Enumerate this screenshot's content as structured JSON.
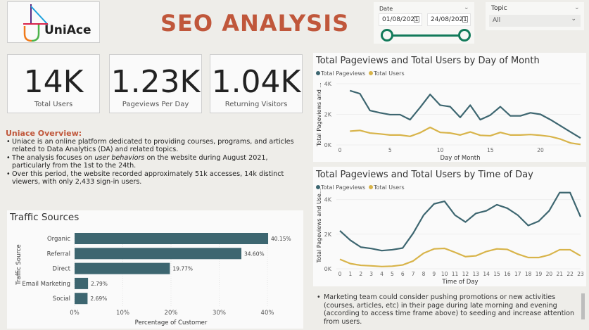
{
  "header": {
    "logo_text": "UniAce",
    "title": "SEO ANALYSIS"
  },
  "filters": {
    "date_label": "Date",
    "start_date": "01/08/2021",
    "end_date": "24/08/2021",
    "topic_label": "Topic",
    "topic_value": "All"
  },
  "kpis": [
    {
      "value": "14K",
      "label": "Total Users"
    },
    {
      "value": "1.23K",
      "label": "Pageviews Per Day"
    },
    {
      "value": "1.04K",
      "label": "Returning Visitors"
    }
  ],
  "overview": {
    "heading": "Uniace Overview:",
    "bullets": [
      "Uniace is an online platform dedicated to providing courses, programs, and articles related to Data Analytics (DA) and related topics.",
      "__b2__",
      "Over this period, the website recorded approximately 51k accesses, 14k distinct viewers, with only 2,433 sign-in users."
    ],
    "b2_pre": "The analysis focuses on ",
    "b2_em": "user behaviors",
    "b2_post": " on the website during August 2021, particularly from the 1st to the 24th."
  },
  "notes": "Marketing team could consider pushing promotions or new activities (courses, articles, etc) in their page during late morning and evening (according to access time frame above) to seeding and increase attention from users.",
  "colors": {
    "pageviews": "#3d6670",
    "users": "#d8b44a",
    "bar": "#3d6670",
    "title": "#c0573b",
    "slider": "#127a5a"
  },
  "chart_data": [
    {
      "type": "bar",
      "orientation": "horizontal",
      "title": "Traffic Sources",
      "xlabel": "Percentage of Customer",
      "ylabel": "Traffic Source",
      "categories": [
        "Organic",
        "Referral",
        "Direct",
        "Email Marketing",
        "Social"
      ],
      "values": [
        40.15,
        34.6,
        19.77,
        2.79,
        2.69
      ],
      "data_labels": [
        "40.15%",
        "34.60%",
        "19.77%",
        "2.79%",
        "2.69%"
      ],
      "xlim": [
        0,
        40
      ],
      "xticks": [
        "0%",
        "10%",
        "20%",
        "30%",
        "40%"
      ],
      "grid": true
    },
    {
      "type": "line",
      "title": "Total Pageviews and Total Users by Day of Month",
      "xlabel": "Day of Month",
      "ylabel": "Total Pageviews and ...",
      "legend": "top-left",
      "x": [
        1,
        2,
        3,
        4,
        5,
        6,
        7,
        8,
        9,
        10,
        11,
        12,
        13,
        14,
        15,
        16,
        17,
        18,
        19,
        20,
        21,
        22,
        23,
        24
      ],
      "xticks": [
        0,
        5,
        10,
        15,
        20
      ],
      "xlim": [
        0,
        24
      ],
      "ylim": [
        0,
        4000
      ],
      "yticks": [
        "0K",
        "2K",
        "4K"
      ],
      "series": [
        {
          "name": "Total Pageviews",
          "values": [
            3550,
            3350,
            2250,
            2100,
            1980,
            1980,
            1650,
            2450,
            3300,
            2600,
            2500,
            1800,
            2600,
            1650,
            1950,
            2500,
            1900,
            1900,
            2100,
            2000,
            1650,
            1250,
            850,
            450
          ]
        },
        {
          "name": "Total Users",
          "values": [
            900,
            950,
            780,
            720,
            650,
            650,
            560,
            800,
            1150,
            820,
            780,
            650,
            850,
            630,
            600,
            820,
            650,
            650,
            680,
            630,
            550,
            380,
            130,
            30
          ]
        }
      ]
    },
    {
      "type": "line",
      "title": "Total Pageviews and Total Users by Time of Day",
      "xlabel": "Time of Day",
      "ylabel": "Total Pageviews and Use...",
      "legend": "top-left",
      "x": [
        0,
        1,
        2,
        3,
        4,
        5,
        6,
        7,
        8,
        9,
        10,
        11,
        12,
        13,
        14,
        15,
        16,
        17,
        18,
        19,
        20,
        21,
        22,
        23
      ],
      "xticks": [
        0,
        1,
        2,
        3,
        4,
        5,
        6,
        7,
        8,
        9,
        10,
        11,
        12,
        13,
        14,
        15,
        16,
        17,
        18,
        19,
        20,
        21,
        22,
        23
      ],
      "xlim": [
        0,
        23
      ],
      "ylim": [
        0,
        5000
      ],
      "yticks": [
        "0K",
        "2K",
        "4K"
      ],
      "series": [
        {
          "name": "Total Pageviews",
          "values": [
            2200,
            1650,
            1250,
            1170,
            1050,
            1100,
            1200,
            2050,
            3100,
            3750,
            3900,
            3100,
            2700,
            3200,
            3350,
            3700,
            3500,
            3100,
            2500,
            2750,
            3350,
            4400,
            4400,
            3000
          ]
        },
        {
          "name": "Total Users",
          "values": [
            550,
            300,
            200,
            170,
            130,
            150,
            220,
            450,
            900,
            1150,
            1180,
            950,
            700,
            750,
            1000,
            1150,
            1120,
            850,
            650,
            650,
            800,
            1100,
            1100,
            750
          ]
        }
      ]
    }
  ]
}
